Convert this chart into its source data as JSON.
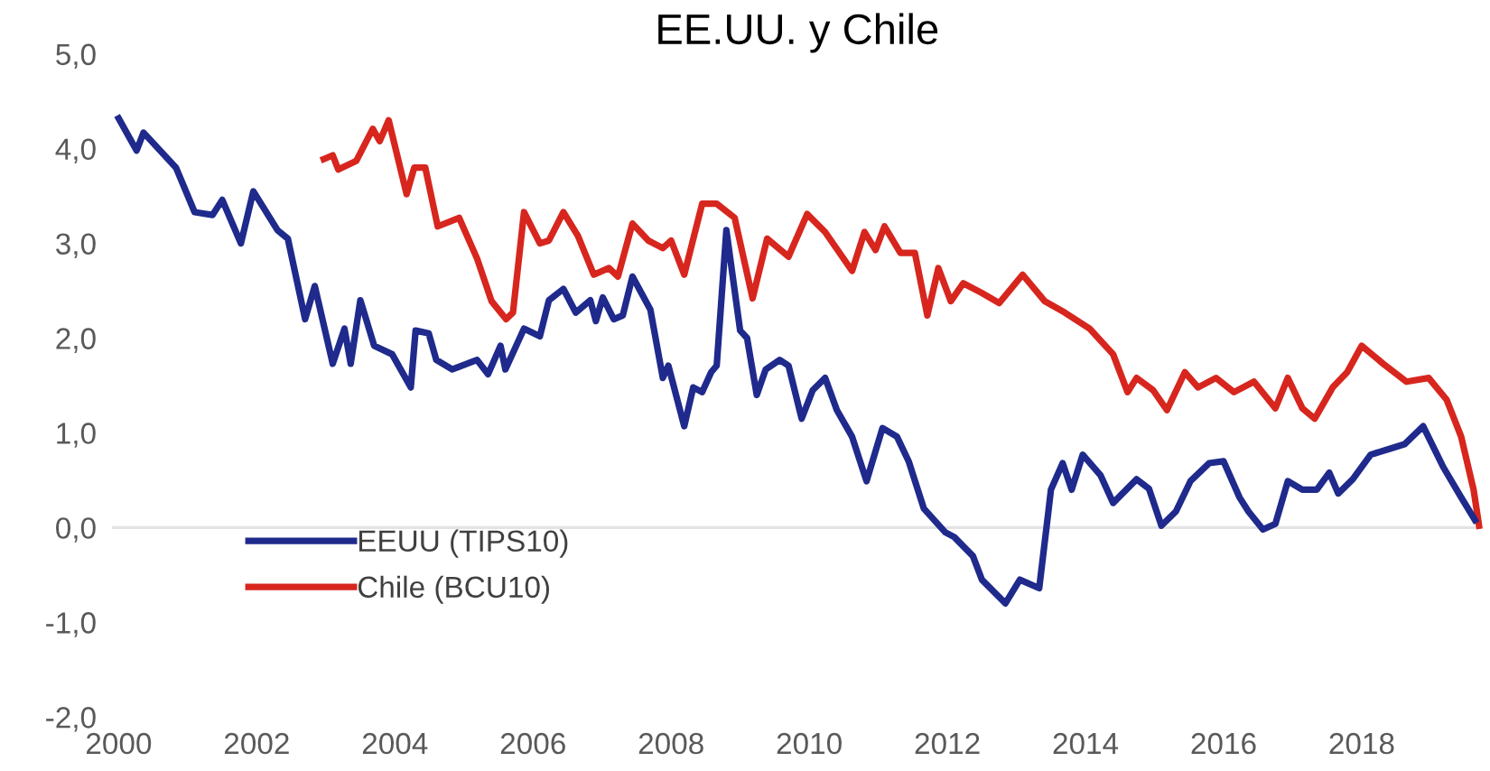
{
  "chart_data": {
    "type": "line",
    "title": "EE.UU. y Chile",
    "ylim": [
      -2.0,
      5.0
    ],
    "yticks": [
      {
        "value": 5,
        "label": "5,0"
      },
      {
        "value": 4,
        "label": "4,0"
      },
      {
        "value": 3,
        "label": "3,0"
      },
      {
        "value": 2,
        "label": "2,0"
      },
      {
        "value": 1,
        "label": "1,0"
      },
      {
        "value": 0,
        "label": "0,0"
      },
      {
        "value": -1,
        "label": "-1,0"
      },
      {
        "value": -2,
        "label": "-2,0"
      }
    ],
    "xlim": [
      1999.9,
      2019.75
    ],
    "xticks": [
      2000,
      2002,
      2004,
      2006,
      2008,
      2010,
      2012,
      2014,
      2016,
      2018
    ],
    "grid": false,
    "legend": "bottom left",
    "line_style": "solid",
    "marker": "none",
    "ref_lines": [
      {
        "axis": "y",
        "value": 0,
        "color": "#e3e3e3"
      }
    ],
    "series": [
      {
        "name": "EEUU (TIPS10)",
        "color": "#1f2a8c",
        "x": [
          2000.0,
          2000.26,
          2000.36,
          2000.83,
          2001.1,
          2001.36,
          2001.5,
          2001.77,
          2001.95,
          2002.3,
          2002.45,
          2002.7,
          2002.84,
          2003.1,
          2003.27,
          2003.36,
          2003.5,
          2003.7,
          2003.96,
          2004.23,
          2004.3,
          2004.49,
          2004.6,
          2004.83,
          2005.19,
          2005.35,
          2005.53,
          2005.6,
          2005.87,
          2006.1,
          2006.23,
          2006.44,
          2006.62,
          2006.83,
          2006.91,
          2007.01,
          2007.17,
          2007.3,
          2007.44,
          2007.7,
          2007.88,
          2007.96,
          2008.19,
          2008.32,
          2008.45,
          2008.58,
          2008.66,
          2008.8,
          2009.0,
          2009.1,
          2009.24,
          2009.37,
          2009.57,
          2009.7,
          2009.89,
          2010.05,
          2010.23,
          2010.4,
          2010.62,
          2010.83,
          2011.06,
          2011.27,
          2011.44,
          2011.66,
          2011.97,
          2012.1,
          2012.37,
          2012.5,
          2012.84,
          2013.05,
          2013.33,
          2013.46,
          2013.5,
          2013.67,
          2013.8,
          2013.96,
          2014.22,
          2014.4,
          2014.74,
          2014.92,
          2015.1,
          2015.31,
          2015.52,
          2015.79,
          2016.0,
          2016.23,
          2016.36,
          2016.57,
          2016.75,
          2016.93,
          2017.14,
          2017.35,
          2017.53,
          2017.66,
          2017.87,
          2018.13,
          2018.4,
          2018.62,
          2018.89,
          2019.18,
          2019.44,
          2019.64
        ],
        "values": [
          4.32,
          3.98,
          4.17,
          3.8,
          3.33,
          3.3,
          3.46,
          3.0,
          3.55,
          3.14,
          3.05,
          2.2,
          2.55,
          1.73,
          2.1,
          1.73,
          2.4,
          1.92,
          1.83,
          1.48,
          2.08,
          2.05,
          1.77,
          1.67,
          1.77,
          1.62,
          1.92,
          1.67,
          2.1,
          2.02,
          2.4,
          2.52,
          2.27,
          2.4,
          2.18,
          2.43,
          2.2,
          2.24,
          2.65,
          2.3,
          1.58,
          1.71,
          1.07,
          1.48,
          1.43,
          1.64,
          1.71,
          3.14,
          2.08,
          2.0,
          1.4,
          1.67,
          1.77,
          1.71,
          1.15,
          1.45,
          1.58,
          1.24,
          0.96,
          0.49,
          1.05,
          0.96,
          0.7,
          0.2,
          -0.05,
          -0.1,
          -0.3,
          -0.55,
          -0.8,
          -0.55,
          -0.64,
          0.15,
          0.4,
          0.68,
          0.4,
          0.77,
          0.55,
          0.26,
          0.51,
          0.41,
          0.02,
          0.17,
          0.49,
          0.68,
          0.7,
          0.32,
          0.17,
          -0.02,
          0.04,
          0.49,
          0.4,
          0.4,
          0.58,
          0.36,
          0.51,
          0.77,
          0.83,
          0.88,
          1.07,
          0.64,
          0.32,
          0.08
        ]
      },
      {
        "name": "Chile (BCU10)",
        "color": "#d7261e",
        "x": [
          2002.97,
          2003.1,
          2003.18,
          2003.44,
          2003.68,
          2003.78,
          2003.91,
          2004.17,
          2004.28,
          2004.44,
          2004.62,
          2004.93,
          2005.19,
          2005.4,
          2005.61,
          2005.71,
          2005.87,
          2006.1,
          2006.23,
          2006.44,
          2006.65,
          2006.88,
          2007.1,
          2007.23,
          2007.44,
          2007.67,
          2007.88,
          2008.0,
          2008.19,
          2008.45,
          2008.66,
          2008.92,
          2009.18,
          2009.39,
          2009.7,
          2009.97,
          2010.23,
          2010.62,
          2010.8,
          2010.96,
          2011.09,
          2011.32,
          2011.53,
          2011.71,
          2011.87,
          2012.05,
          2012.23,
          2012.49,
          2012.75,
          2013.09,
          2013.41,
          2013.7,
          2014.06,
          2014.4,
          2014.61,
          2014.74,
          2014.98,
          2015.18,
          2015.44,
          2015.63,
          2015.89,
          2016.15,
          2016.44,
          2016.75,
          2016.93,
          2017.14,
          2017.32,
          2017.58,
          2017.79,
          2018.0,
          2018.31,
          2018.65,
          2018.97,
          2019.23,
          2019.44,
          2019.62,
          2019.7
        ],
        "values": [
          3.89,
          3.93,
          3.78,
          3.87,
          4.21,
          4.08,
          4.3,
          3.52,
          3.8,
          3.8,
          3.18,
          3.27,
          2.84,
          2.39,
          2.2,
          2.27,
          3.33,
          3.0,
          3.03,
          3.33,
          3.08,
          2.67,
          2.74,
          2.65,
          3.21,
          3.03,
          2.95,
          3.03,
          2.67,
          3.42,
          3.42,
          3.27,
          2.42,
          3.05,
          2.86,
          3.31,
          3.12,
          2.71,
          3.12,
          2.93,
          3.18,
          2.9,
          2.9,
          2.24,
          2.74,
          2.39,
          2.58,
          2.48,
          2.37,
          2.67,
          2.39,
          2.27,
          2.1,
          1.83,
          1.43,
          1.58,
          1.45,
          1.24,
          1.64,
          1.48,
          1.58,
          1.43,
          1.54,
          1.26,
          1.58,
          1.26,
          1.15,
          1.48,
          1.64,
          1.92,
          1.73,
          1.54,
          1.58,
          1.35,
          0.96,
          0.4,
          0.02
        ]
      }
    ]
  }
}
